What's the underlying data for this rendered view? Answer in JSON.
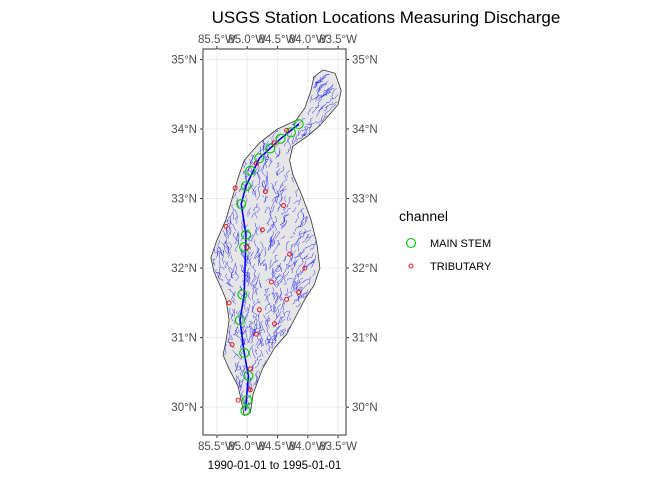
{
  "map": {
    "title": "USGS Station Locations Measuring Discharge",
    "caption": "1990-01-01 to 1995-01-01",
    "x_ticks": [
      {
        "value": -85.5,
        "label": "85.5°W"
      },
      {
        "value": -85.0,
        "label": "85.0°W"
      },
      {
        "value": -84.5,
        "label": "84.5°W"
      },
      {
        "value": -84.0,
        "label": "84.0°W"
      },
      {
        "value": -83.5,
        "label": "83.5°W"
      }
    ],
    "y_ticks": [
      {
        "value": 30,
        "label": "30°N"
      },
      {
        "value": 31,
        "label": "31°N"
      },
      {
        "value": 32,
        "label": "32°N"
      },
      {
        "value": 33,
        "label": "33°N"
      },
      {
        "value": 34,
        "label": "34°N"
      },
      {
        "value": 35,
        "label": "35°N"
      }
    ],
    "xlim": [
      -85.73,
      -83.37
    ],
    "ylim": [
      29.6,
      35.15
    ],
    "colors": {
      "basin_fill": "#e6e6e6",
      "basin_outline": "#333333",
      "river": "#0000ee",
      "main_stem": "#00cc00",
      "tributary": "#e8181e"
    },
    "legend": {
      "title": "channel",
      "items": [
        {
          "label": "MAIN STEM",
          "marker": "open-circle-large",
          "color": "#00cc00"
        },
        {
          "label": "TRIBUTARY",
          "marker": "open-circle-small",
          "color": "#e8181e"
        }
      ]
    },
    "basin_outline": [
      [
        -84.2,
        34.12
      ],
      [
        -84.05,
        34.3
      ],
      [
        -83.95,
        34.55
      ],
      [
        -83.9,
        34.75
      ],
      [
        -83.75,
        34.85
      ],
      [
        -83.55,
        34.8
      ],
      [
        -83.45,
        34.55
      ],
      [
        -83.5,
        34.35
      ],
      [
        -83.65,
        34.2
      ],
      [
        -83.8,
        34.05
      ],
      [
        -84.0,
        33.9
      ],
      [
        -84.25,
        33.75
      ],
      [
        -84.3,
        33.55
      ],
      [
        -84.25,
        33.35
      ],
      [
        -84.1,
        33.05
      ],
      [
        -83.95,
        32.7
      ],
      [
        -83.85,
        32.35
      ],
      [
        -83.8,
        32.0
      ],
      [
        -83.9,
        31.75
      ],
      [
        -84.05,
        31.55
      ],
      [
        -84.2,
        31.3
      ],
      [
        -84.35,
        31.05
      ],
      [
        -84.55,
        30.85
      ],
      [
        -84.75,
        30.55
      ],
      [
        -84.9,
        30.2
      ],
      [
        -84.95,
        29.92
      ],
      [
        -85.05,
        29.88
      ],
      [
        -85.1,
        30.1
      ],
      [
        -85.15,
        30.3
      ],
      [
        -85.3,
        30.55
      ],
      [
        -85.4,
        30.75
      ],
      [
        -85.35,
        30.95
      ],
      [
        -85.3,
        31.25
      ],
      [
        -85.35,
        31.55
      ],
      [
        -85.45,
        31.75
      ],
      [
        -85.55,
        31.95
      ],
      [
        -85.6,
        32.15
      ],
      [
        -85.5,
        32.4
      ],
      [
        -85.35,
        32.7
      ],
      [
        -85.25,
        33.0
      ],
      [
        -85.15,
        33.3
      ],
      [
        -85.05,
        33.55
      ],
      [
        -84.8,
        33.8
      ],
      [
        -84.5,
        34.0
      ],
      [
        -84.2,
        34.12
      ]
    ],
    "main_stem_stations": [
      {
        "lon": -84.15,
        "lat": 34.07
      },
      {
        "lon": -84.28,
        "lat": 33.95
      },
      {
        "lon": -84.45,
        "lat": 33.86
      },
      {
        "lon": -84.62,
        "lat": 33.72
      },
      {
        "lon": -84.8,
        "lat": 33.58
      },
      {
        "lon": -84.95,
        "lat": 33.4
      },
      {
        "lon": -85.02,
        "lat": 33.18
      },
      {
        "lon": -85.1,
        "lat": 32.92
      },
      {
        "lon": -85.02,
        "lat": 32.48
      },
      {
        "lon": -85.05,
        "lat": 32.3
      },
      {
        "lon": -85.08,
        "lat": 31.62
      },
      {
        "lon": -85.12,
        "lat": 31.25
      },
      {
        "lon": -85.05,
        "lat": 30.78
      },
      {
        "lon": -84.98,
        "lat": 30.45
      },
      {
        "lon": -85.0,
        "lat": 30.1
      },
      {
        "lon": -85.03,
        "lat": 29.95
      }
    ],
    "tributary_stations": [
      {
        "lon": -84.35,
        "lat": 33.98
      },
      {
        "lon": -84.55,
        "lat": 33.8
      },
      {
        "lon": -84.85,
        "lat": 33.5
      },
      {
        "lon": -85.2,
        "lat": 33.15
      },
      {
        "lon": -84.7,
        "lat": 33.1
      },
      {
        "lon": -84.4,
        "lat": 32.9
      },
      {
        "lon": -85.35,
        "lat": 32.6
      },
      {
        "lon": -84.75,
        "lat": 32.55
      },
      {
        "lon": -85.0,
        "lat": 32.3
      },
      {
        "lon": -84.3,
        "lat": 32.2
      },
      {
        "lon": -84.05,
        "lat": 32.0
      },
      {
        "lon": -84.6,
        "lat": 31.8
      },
      {
        "lon": -84.15,
        "lat": 31.65
      },
      {
        "lon": -84.35,
        "lat": 31.55
      },
      {
        "lon": -84.8,
        "lat": 31.4
      },
      {
        "lon": -85.3,
        "lat": 31.5
      },
      {
        "lon": -84.55,
        "lat": 31.2
      },
      {
        "lon": -84.85,
        "lat": 31.05
      },
      {
        "lon": -85.25,
        "lat": 30.9
      },
      {
        "lon": -84.95,
        "lat": 30.55
      },
      {
        "lon": -85.15,
        "lat": 30.1
      },
      {
        "lon": -84.95,
        "lat": 30.25
      }
    ]
  }
}
